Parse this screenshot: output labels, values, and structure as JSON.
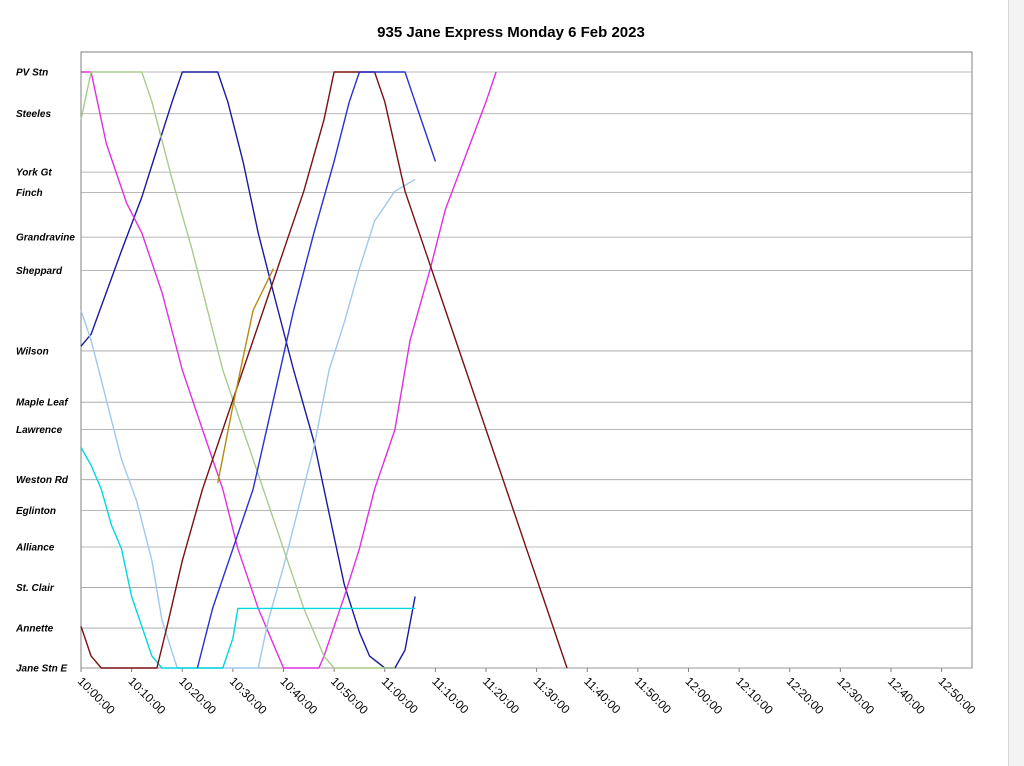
{
  "chart_data": {
    "type": "line",
    "title": "935 Jane Express Monday 6 Feb 2023",
    "x_range": [
      "10:00:00",
      "12:56:00"
    ],
    "x_ticks": [
      "10:00:00",
      "10:10:00",
      "10:20:00",
      "10:30:00",
      "10:40:00",
      "10:50:00",
      "11:00:00",
      "11:10:00",
      "11:20:00",
      "11:30:00",
      "11:40:00",
      "11:50:00",
      "12:00:00",
      "12:10:00",
      "12:20:00",
      "12:30:00",
      "12:40:00",
      "12:50:00"
    ],
    "stops": [
      {
        "name": "PV Stn",
        "pos": 0
      },
      {
        "name": "Steeles",
        "pos": 0.07
      },
      {
        "name": "York Gt",
        "pos": 0.168
      },
      {
        "name": "Finch",
        "pos": 0.202
      },
      {
        "name": "Grandravine",
        "pos": 0.277
      },
      {
        "name": "Sheppard",
        "pos": 0.333
      },
      {
        "name": "Wilson",
        "pos": 0.468
      },
      {
        "name": "Maple Leaf",
        "pos": 0.554
      },
      {
        "name": "Lawrence",
        "pos": 0.6
      },
      {
        "name": "Weston Rd",
        "pos": 0.684
      },
      {
        "name": "Eglinton",
        "pos": 0.736
      },
      {
        "name": "Alliance",
        "pos": 0.797
      },
      {
        "name": "St. Clair",
        "pos": 0.865
      },
      {
        "name": "Annette",
        "pos": 0.933
      },
      {
        "name": "Jane Stn E",
        "pos": 1.0
      }
    ],
    "grid": true,
    "legend": "none",
    "series": [
      {
        "color": "#1a1aa0",
        "points": [
          [
            "10:00",
            0.46
          ],
          [
            "10:02",
            0.44
          ],
          [
            "10:08",
            0.3
          ],
          [
            "10:12",
            0.21
          ],
          [
            "10:15",
            0.13
          ],
          [
            "10:18",
            0.05
          ],
          [
            "10:20",
            0.0
          ],
          [
            "10:27",
            0.0
          ],
          [
            "10:29",
            0.05
          ],
          [
            "10:32",
            0.15
          ],
          [
            "10:35",
            0.27
          ],
          [
            "10:38",
            0.37
          ],
          [
            "10:42",
            0.5
          ],
          [
            "10:46",
            0.62
          ],
          [
            "10:50",
            0.78
          ],
          [
            "10:52",
            0.86
          ],
          [
            "10:55",
            0.94
          ],
          [
            "10:57",
            0.98
          ],
          [
            "11:00",
            1.0
          ],
          [
            "11:02",
            1.0
          ],
          [
            "11:04",
            0.97
          ],
          [
            "11:06",
            0.88
          ]
        ]
      },
      {
        "color": "#e030e0",
        "points": [
          [
            "10:00",
            0.0
          ],
          [
            "10:02",
            0.0
          ],
          [
            "10:05",
            0.12
          ],
          [
            "10:09",
            0.22
          ],
          [
            "10:12",
            0.27
          ],
          [
            "10:16",
            0.37
          ],
          [
            "10:20",
            0.5
          ],
          [
            "10:24",
            0.6
          ],
          [
            "10:28",
            0.7
          ],
          [
            "10:31",
            0.8
          ],
          [
            "10:35",
            0.9
          ],
          [
            "10:38",
            0.96
          ],
          [
            "10:40",
            1.0
          ],
          [
            "10:47",
            1.0
          ],
          [
            "10:48",
            0.98
          ],
          [
            "10:52",
            0.88
          ],
          [
            "10:55",
            0.8
          ],
          [
            "10:58",
            0.7
          ],
          [
            "11:02",
            0.6
          ],
          [
            "11:05",
            0.45
          ],
          [
            "11:09",
            0.33
          ],
          [
            "11:12",
            0.23
          ],
          [
            "11:16",
            0.14
          ],
          [
            "11:20",
            0.05
          ],
          [
            "11:22",
            0.0
          ]
        ]
      },
      {
        "color": "#9ec9ee",
        "points": [
          [
            "10:00",
            0.4
          ],
          [
            "10:02",
            0.45
          ],
          [
            "10:05",
            0.55
          ],
          [
            "10:08",
            0.65
          ],
          [
            "10:11",
            0.72
          ],
          [
            "10:14",
            0.82
          ],
          [
            "10:16",
            0.92
          ],
          [
            "10:19",
            1.0
          ],
          [
            "10:35",
            1.0
          ],
          [
            "10:37",
            0.92
          ],
          [
            "10:40",
            0.83
          ],
          [
            "10:43",
            0.73
          ],
          [
            "10:46",
            0.63
          ],
          [
            "10:49",
            0.5
          ],
          [
            "10:52",
            0.42
          ],
          [
            "10:55",
            0.33
          ],
          [
            "10:58",
            0.25
          ],
          [
            "11:02",
            0.2
          ],
          [
            "11:06",
            0.18
          ]
        ]
      },
      {
        "color": "#a8cc8c",
        "points": [
          [
            "10:00",
            0.08
          ],
          [
            "10:02",
            0.0
          ],
          [
            "10:12",
            0.0
          ],
          [
            "10:14",
            0.05
          ],
          [
            "10:18",
            0.18
          ],
          [
            "10:22",
            0.3
          ],
          [
            "10:25",
            0.4
          ],
          [
            "10:28",
            0.5
          ],
          [
            "10:32",
            0.6
          ],
          [
            "10:36",
            0.7
          ],
          [
            "10:40",
            0.8
          ],
          [
            "10:44",
            0.9
          ],
          [
            "10:48",
            0.98
          ],
          [
            "10:50",
            1.0
          ],
          [
            "11:02",
            1.0
          ]
        ]
      },
      {
        "color": "#00d8e0",
        "points": [
          [
            "10:00",
            0.63
          ],
          [
            "10:02",
            0.66
          ],
          [
            "10:04",
            0.7
          ],
          [
            "10:06",
            0.76
          ],
          [
            "10:08",
            0.8
          ],
          [
            "10:10",
            0.88
          ],
          [
            "10:12",
            0.93
          ],
          [
            "10:14",
            0.98
          ],
          [
            "10:16",
            1.0
          ],
          [
            "10:28",
            1.0
          ],
          [
            "10:30",
            0.95
          ],
          [
            "10:31",
            0.9
          ],
          [
            "11:06",
            0.9
          ]
        ]
      },
      {
        "color": "#7a1010",
        "points": [
          [
            "10:00",
            0.93
          ],
          [
            "10:02",
            0.98
          ],
          [
            "10:04",
            1.0
          ],
          [
            "10:15",
            1.0
          ],
          [
            "10:17",
            0.93
          ],
          [
            "10:20",
            0.82
          ],
          [
            "10:24",
            0.7
          ],
          [
            "10:28",
            0.6
          ],
          [
            "10:32",
            0.5
          ],
          [
            "10:36",
            0.4
          ],
          [
            "10:40",
            0.3
          ],
          [
            "10:44",
            0.2
          ],
          [
            "10:48",
            0.08
          ],
          [
            "10:50",
            0.0
          ],
          [
            "10:58",
            0.0
          ],
          [
            "11:00",
            0.05
          ],
          [
            "11:04",
            0.2
          ],
          [
            "11:08",
            0.3
          ],
          [
            "11:12",
            0.4
          ],
          [
            "11:16",
            0.5
          ],
          [
            "11:20",
            0.6
          ],
          [
            "11:24",
            0.7
          ],
          [
            "11:28",
            0.8
          ],
          [
            "11:32",
            0.9
          ],
          [
            "11:36",
            1.0
          ]
        ]
      },
      {
        "color": "#b88a10",
        "points": [
          [
            "10:27",
            0.69
          ],
          [
            "10:30",
            0.56
          ],
          [
            "10:34",
            0.4
          ],
          [
            "10:38",
            0.33
          ]
        ]
      },
      {
        "color": "#2830d0",
        "points": [
          [
            "10:23",
            1.0
          ],
          [
            "10:26",
            0.9
          ],
          [
            "10:30",
            0.8
          ],
          [
            "10:34",
            0.7
          ],
          [
            "10:38",
            0.55
          ],
          [
            "10:42",
            0.4
          ],
          [
            "10:46",
            0.27
          ],
          [
            "10:50",
            0.15
          ],
          [
            "10:53",
            0.05
          ],
          [
            "10:55",
            0.0
          ],
          [
            "11:04",
            0.0
          ],
          [
            "11:06",
            0.05
          ],
          [
            "11:10",
            0.15
          ]
        ]
      }
    ]
  }
}
